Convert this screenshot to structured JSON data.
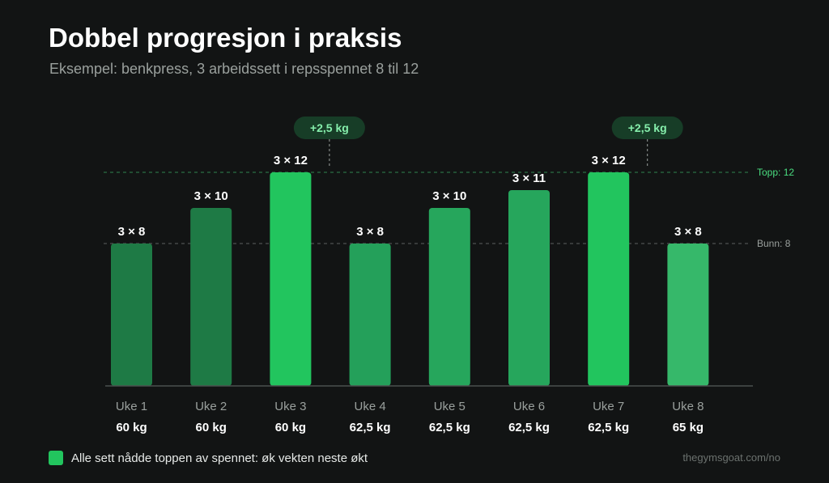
{
  "title": "Dobbel progresjon i praksis",
  "subtitle": "Eksempel: benkpress, 3 arbeidssett i repsspennet 8 til 12",
  "legend": {
    "label": "Alle sett nådde toppen av spennet: øk vekten neste økt",
    "color": "#22c55e"
  },
  "source": "thegymsgoat.com/no",
  "chart_data": {
    "type": "bar",
    "categories": [
      "Uke 1",
      "Uke 2",
      "Uke 3",
      "Uke 4",
      "Uke 5",
      "Uke 6",
      "Uke 7",
      "Uke 8"
    ],
    "values": [
      8,
      10,
      12,
      8,
      10,
      11,
      12,
      8
    ],
    "bar_labels": [
      "3 × 8",
      "3 × 10",
      "3 × 12",
      "3 × 8",
      "3 × 10",
      "3 × 11",
      "3 × 12",
      "3 × 8"
    ],
    "weights": [
      "60 kg",
      "60 kg",
      "60 kg",
      "62,5 kg",
      "62,5 kg",
      "62,5 kg",
      "62,5 kg",
      "65 kg"
    ],
    "bar_colors": [
      "#1e7a45",
      "#1e7a45",
      "#22c55e",
      "#24a05a",
      "#26a65c",
      "#26a65c",
      "#22c55e",
      "#36b86a"
    ],
    "ylim": [
      0,
      12
    ],
    "reference_lines": [
      {
        "value": 12,
        "label": "Topp: 12",
        "color": "#4ade80"
      },
      {
        "value": 8,
        "label": "Bunn: 8",
        "color": "#9aa09d"
      }
    ],
    "annotations": [
      {
        "category_index": 2,
        "text": "+2,5 kg"
      },
      {
        "category_index": 6,
        "text": "+2,5 kg"
      }
    ]
  }
}
